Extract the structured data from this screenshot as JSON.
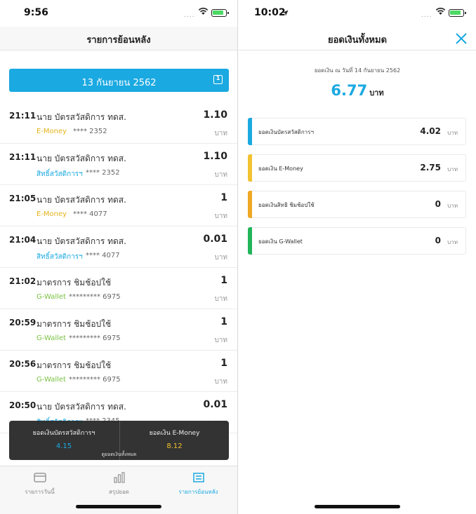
{
  "left": {
    "status": {
      "time": "9:56",
      "signal": "...."
    },
    "title": "รายการย้อนหลัง",
    "date_label": "13 กันยายน 2562",
    "calendar_day": "1",
    "transactions": [
      {
        "time": "21:11",
        "name": "นาย บัตรสวัสดิการ ทดส.",
        "amount": "1.10",
        "wallet": "E-Money",
        "wallet_color": "#e8b21a",
        "mask": "**** 2352",
        "unit": "บาท"
      },
      {
        "time": "21:11",
        "name": "นาย บัตรสวัสดิการ ทดส.",
        "amount": "1.10",
        "wallet": "สิทธิ์สวัสดิการฯ",
        "wallet_color": "#1ba9e1",
        "mask": "**** 2352",
        "unit": "บาท"
      },
      {
        "time": "21:05",
        "name": "นาย บัตรสวัสดิการ ทดส.",
        "amount": "1",
        "wallet": "E-Money",
        "wallet_color": "#e8b21a",
        "mask": "**** 4077",
        "unit": "บาท"
      },
      {
        "time": "21:04",
        "name": "นาย บัตรสวัสดิการ ทดส.",
        "amount": "0.01",
        "wallet": "สิทธิ์สวัสดิการฯ",
        "wallet_color": "#1ba9e1",
        "mask": "**** 4077",
        "unit": "บาท"
      },
      {
        "time": "21:02",
        "name": "มาตรการ ชิมช้อปใช้",
        "amount": "1",
        "wallet": "G-Wallet",
        "wallet_color": "#7ac143",
        "mask": "********* 6975",
        "unit": "บาท"
      },
      {
        "time": "20:59",
        "name": "มาตรการ ชิมช้อปใช้",
        "amount": "1",
        "wallet": "G-Wallet",
        "wallet_color": "#7ac143",
        "mask": "********* 6975",
        "unit": "บาท"
      },
      {
        "time": "20:56",
        "name": "มาตรการ ชิมช้อปใช้",
        "amount": "1",
        "wallet": "G-Wallet",
        "wallet_color": "#7ac143",
        "mask": "********* 6975",
        "unit": "บาท"
      },
      {
        "time": "20:50",
        "name": "นาย บัตรสวัสดิการ ทดส.",
        "amount": "0.01",
        "wallet": "สิทธิ์สวัสดิการฯ",
        "wallet_color": "#1ba9e1",
        "mask": "**** 2345",
        "unit": "บาท"
      }
    ],
    "summary": {
      "welfare_label": "ยอดเงินบัตรสวัสดิการฯ",
      "welfare_value": "4.15",
      "welfare_color": "#1ba9e1",
      "emoney_label": "ยอดเงิน E-Money",
      "emoney_value": "8.12",
      "emoney_color": "#f2c230",
      "view_all": "ดูยอดเงินทั้งหมด"
    },
    "tabs": [
      {
        "label": "รายการวันนี้",
        "icon": "card-icon"
      },
      {
        "label": "สรุปยอด",
        "icon": "bar-chart-icon"
      },
      {
        "label": "รายการย้อนหลัง",
        "icon": "history-list-icon"
      }
    ],
    "active_tab": 2
  },
  "right": {
    "status": {
      "time": "10:02",
      "signal": "...."
    },
    "title": "ยอดเงินทั้งหมด",
    "as_of": "ยอดเงิน ณ วันที่ 14 กันยายน 2562",
    "total": "6.77",
    "total_unit": "บาท",
    "balances": [
      {
        "label": "ยอดเงินบัตรสวัสดิการฯ",
        "value": "4.02",
        "unit": "บาท",
        "color": "#1ba9e1"
      },
      {
        "label": "ยอดเงิน E-Money",
        "value": "2.75",
        "unit": "บาท",
        "color": "#f2c230"
      },
      {
        "label": "ยอดเงินสิทธิ ชิมช้อปใช้",
        "value": "0",
        "unit": "บาท",
        "color": "#f0a824"
      },
      {
        "label": "ยอดเงิน G-Wallet",
        "value": "0",
        "unit": "บาท",
        "color": "#22b55a"
      }
    ]
  }
}
